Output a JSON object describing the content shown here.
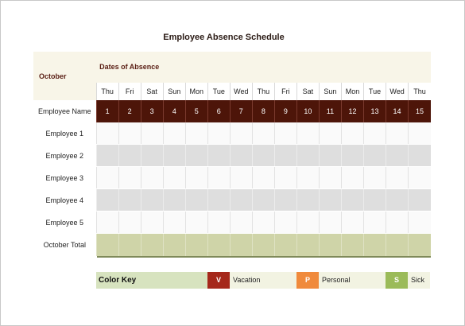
{
  "document": {
    "title": "Employee Absence Schedule"
  },
  "schedule": {
    "month": "October",
    "dates_header": "Dates of Absence",
    "name_header": "Employee Name",
    "days": [
      "Thu",
      "Fri",
      "Sat",
      "Sun",
      "Mon",
      "Tue",
      "Wed",
      "Thu",
      "Fri",
      "Sat",
      "Sun",
      "Mon",
      "Tue",
      "Wed",
      "Thu"
    ],
    "dates": [
      "1",
      "2",
      "3",
      "4",
      "5",
      "6",
      "7",
      "8",
      "9",
      "10",
      "11",
      "12",
      "13",
      "14",
      "15"
    ],
    "employees": [
      "Employee 1",
      "Employee 2",
      "Employee 3",
      "Employee 4",
      "Employee 5"
    ],
    "total_label": "October Total"
  },
  "color_key": {
    "title": "Color Key",
    "items": [
      {
        "code": "V",
        "label": "Vacation",
        "color": "#a5281b"
      },
      {
        "code": "P",
        "label": "Personal",
        "color": "#f08a3c"
      },
      {
        "code": "S",
        "label": "Sick",
        "color": "#9bbb59"
      }
    ]
  },
  "colors": {
    "header_dark": "#4d1509",
    "header_text": "#5a1e14",
    "total_fill": "#cfd4a8"
  }
}
